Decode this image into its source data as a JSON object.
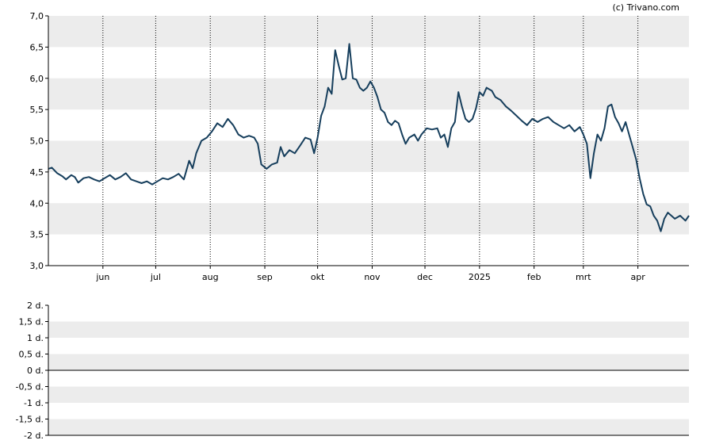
{
  "credit": "(c) Trivano.com",
  "colors": {
    "line": "#163e5c",
    "band": "#ececec",
    "background": "#ffffff",
    "axis": "#000000"
  },
  "chart_data": [
    {
      "type": "line",
      "title": "",
      "xlabel": "",
      "ylabel": "",
      "grid": true,
      "ylim": [
        3.0,
        7.0
      ],
      "y_ticks": [
        "3,0",
        "3,5",
        "4,0",
        "4,5",
        "5,0",
        "5,5",
        "6,0",
        "6,5",
        "7,0"
      ],
      "x_tick_labels": [
        "jun",
        "jul",
        "aug",
        "sep",
        "okt",
        "nov",
        "dec",
        "2025",
        "feb",
        "mrt",
        "apr"
      ],
      "x_range": [
        "2024-05-01",
        "2025-04-30"
      ],
      "x_tick_dates": [
        "2024-06-01",
        "2024-07-01",
        "2024-08-01",
        "2024-09-01",
        "2024-10-01",
        "2024-11-01",
        "2024-12-01",
        "2025-01-01",
        "2025-02-01",
        "2025-03-01",
        "2025-04-01"
      ],
      "series": [
        {
          "name": "",
          "points": [
            [
              "2024-05-01",
              4.55
            ],
            [
              "2024-05-03",
              4.57
            ],
            [
              "2024-05-06",
              4.48
            ],
            [
              "2024-05-09",
              4.43
            ],
            [
              "2024-05-11",
              4.38
            ],
            [
              "2024-05-14",
              4.45
            ],
            [
              "2024-05-16",
              4.42
            ],
            [
              "2024-05-18",
              4.33
            ],
            [
              "2024-05-21",
              4.4
            ],
            [
              "2024-05-24",
              4.42
            ],
            [
              "2024-05-27",
              4.38
            ],
            [
              "2024-05-30",
              4.35
            ],
            [
              "2024-06-02",
              4.4
            ],
            [
              "2024-06-05",
              4.45
            ],
            [
              "2024-06-08",
              4.38
            ],
            [
              "2024-06-11",
              4.42
            ],
            [
              "2024-06-14",
              4.48
            ],
            [
              "2024-06-17",
              4.38
            ],
            [
              "2024-06-20",
              4.35
            ],
            [
              "2024-06-23",
              4.32
            ],
            [
              "2024-06-26",
              4.35
            ],
            [
              "2024-06-29",
              4.3
            ],
            [
              "2024-07-02",
              4.35
            ],
            [
              "2024-07-05",
              4.4
            ],
            [
              "2024-07-08",
              4.38
            ],
            [
              "2024-07-11",
              4.42
            ],
            [
              "2024-07-14",
              4.47
            ],
            [
              "2024-07-17",
              4.38
            ],
            [
              "2024-07-20",
              4.68
            ],
            [
              "2024-07-22",
              4.56
            ],
            [
              "2024-07-24",
              4.8
            ],
            [
              "2024-07-27",
              5.0
            ],
            [
              "2024-07-30",
              5.05
            ],
            [
              "2024-08-02",
              5.15
            ],
            [
              "2024-08-05",
              5.28
            ],
            [
              "2024-08-08",
              5.22
            ],
            [
              "2024-08-11",
              5.35
            ],
            [
              "2024-08-14",
              5.25
            ],
            [
              "2024-08-17",
              5.1
            ],
            [
              "2024-08-20",
              5.05
            ],
            [
              "2024-08-23",
              5.08
            ],
            [
              "2024-08-26",
              5.05
            ],
            [
              "2024-08-28",
              4.95
            ],
            [
              "2024-08-30",
              4.62
            ],
            [
              "2024-09-02",
              4.55
            ],
            [
              "2024-09-05",
              4.62
            ],
            [
              "2024-09-08",
              4.65
            ],
            [
              "2024-09-10",
              4.9
            ],
            [
              "2024-09-12",
              4.75
            ],
            [
              "2024-09-15",
              4.85
            ],
            [
              "2024-09-18",
              4.8
            ],
            [
              "2024-09-21",
              4.92
            ],
            [
              "2024-09-24",
              5.05
            ],
            [
              "2024-09-27",
              5.02
            ],
            [
              "2024-09-29",
              4.8
            ],
            [
              "2024-10-01",
              5.05
            ],
            [
              "2024-10-03",
              5.4
            ],
            [
              "2024-10-05",
              5.55
            ],
            [
              "2024-10-07",
              5.85
            ],
            [
              "2024-10-09",
              5.75
            ],
            [
              "2024-10-11",
              6.45
            ],
            [
              "2024-10-13",
              6.2
            ],
            [
              "2024-10-15",
              5.98
            ],
            [
              "2024-10-17",
              6.0
            ],
            [
              "2024-10-19",
              6.55
            ],
            [
              "2024-10-21",
              6.0
            ],
            [
              "2024-10-23",
              5.98
            ],
            [
              "2024-10-25",
              5.85
            ],
            [
              "2024-10-27",
              5.8
            ],
            [
              "2024-10-29",
              5.85
            ],
            [
              "2024-10-31",
              5.95
            ],
            [
              "2024-11-02",
              5.85
            ],
            [
              "2024-11-04",
              5.7
            ],
            [
              "2024-11-06",
              5.5
            ],
            [
              "2024-11-08",
              5.45
            ],
            [
              "2024-11-10",
              5.3
            ],
            [
              "2024-11-12",
              5.25
            ],
            [
              "2024-11-14",
              5.32
            ],
            [
              "2024-11-16",
              5.28
            ],
            [
              "2024-11-18",
              5.1
            ],
            [
              "2024-11-20",
              4.95
            ],
            [
              "2024-11-22",
              5.05
            ],
            [
              "2024-11-25",
              5.1
            ],
            [
              "2024-11-27",
              5.0
            ],
            [
              "2024-11-29",
              5.1
            ],
            [
              "2024-12-02",
              5.2
            ],
            [
              "2024-12-05",
              5.18
            ],
            [
              "2024-12-08",
              5.2
            ],
            [
              "2024-12-10",
              5.05
            ],
            [
              "2024-12-12",
              5.1
            ],
            [
              "2024-12-14",
              4.9
            ],
            [
              "2024-12-16",
              5.2
            ],
            [
              "2024-12-18",
              5.3
            ],
            [
              "2024-12-20",
              5.78
            ],
            [
              "2024-12-22",
              5.55
            ],
            [
              "2024-12-24",
              5.35
            ],
            [
              "2024-12-26",
              5.3
            ],
            [
              "2024-12-28",
              5.35
            ],
            [
              "2024-12-30",
              5.52
            ],
            [
              "2025-01-01",
              5.78
            ],
            [
              "2025-01-03",
              5.72
            ],
            [
              "2025-01-05",
              5.85
            ],
            [
              "2025-01-08",
              5.8
            ],
            [
              "2025-01-10",
              5.7
            ],
            [
              "2025-01-13",
              5.65
            ],
            [
              "2025-01-16",
              5.55
            ],
            [
              "2025-01-19",
              5.48
            ],
            [
              "2025-01-22",
              5.4
            ],
            [
              "2025-01-25",
              5.32
            ],
            [
              "2025-01-28",
              5.25
            ],
            [
              "2025-01-31",
              5.35
            ],
            [
              "2025-02-03",
              5.3
            ],
            [
              "2025-02-06",
              5.35
            ],
            [
              "2025-02-09",
              5.38
            ],
            [
              "2025-02-12",
              5.3
            ],
            [
              "2025-02-15",
              5.25
            ],
            [
              "2025-02-18",
              5.2
            ],
            [
              "2025-02-21",
              5.25
            ],
            [
              "2025-02-24",
              5.15
            ],
            [
              "2025-02-27",
              5.22
            ],
            [
              "2025-03-01",
              5.1
            ],
            [
              "2025-03-03",
              4.95
            ],
            [
              "2025-03-05",
              4.4
            ],
            [
              "2025-03-07",
              4.8
            ],
            [
              "2025-03-09",
              5.1
            ],
            [
              "2025-03-11",
              5.0
            ],
            [
              "2025-03-13",
              5.2
            ],
            [
              "2025-03-15",
              5.55
            ],
            [
              "2025-03-17",
              5.58
            ],
            [
              "2025-03-19",
              5.38
            ],
            [
              "2025-03-21",
              5.28
            ],
            [
              "2025-03-23",
              5.15
            ],
            [
              "2025-03-25",
              5.3
            ],
            [
              "2025-03-27",
              5.1
            ],
            [
              "2025-03-29",
              4.9
            ],
            [
              "2025-03-31",
              4.7
            ],
            [
              "2025-04-02",
              4.4
            ],
            [
              "2025-04-04",
              4.15
            ],
            [
              "2025-04-06",
              3.98
            ],
            [
              "2025-04-08",
              3.95
            ],
            [
              "2025-04-10",
              3.8
            ],
            [
              "2025-04-12",
              3.72
            ],
            [
              "2025-04-14",
              3.55
            ],
            [
              "2025-04-16",
              3.75
            ],
            [
              "2025-04-18",
              3.85
            ],
            [
              "2025-04-20",
              3.8
            ],
            [
              "2025-04-22",
              3.75
            ],
            [
              "2025-04-25",
              3.8
            ],
            [
              "2025-04-28",
              3.72
            ],
            [
              "2025-04-30",
              3.8
            ]
          ]
        }
      ]
    },
    {
      "type": "line",
      "title": "",
      "xlabel": "",
      "ylabel": "",
      "grid": true,
      "ylim": [
        -2,
        2
      ],
      "y_ticks": [
        "-2 d.",
        "-1,5 d.",
        "-1 d.",
        "-0,5 d.",
        "0 d.",
        "0,5 d.",
        "1 d.",
        "1,5 d.",
        "2 d."
      ],
      "baseline": 0,
      "series": []
    }
  ]
}
